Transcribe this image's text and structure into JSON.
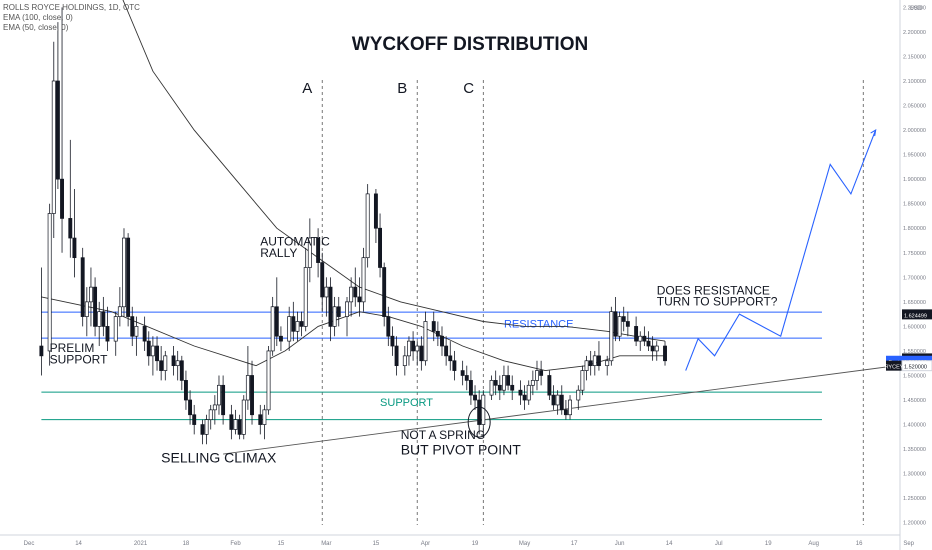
{
  "header": {
    "symbol_line": "ROLLS ROYCE HOLDINGS, 1D, OTC",
    "ema1": "EMA (100, close, 0)",
    "ema2": "EMA (50, close, 0)"
  },
  "chart_data": {
    "type": "candlestick",
    "title": "WYCKOFF DISTRIBUTION",
    "currency": "USD",
    "ylim": [
      1.175,
      2.265
    ],
    "y_ticks": [
      2.25,
      2.2,
      2.15,
      2.1,
      2.05,
      2.0,
      1.95,
      1.9,
      1.85,
      1.8,
      1.75,
      1.7,
      1.65,
      1.6,
      1.55,
      1.5,
      1.45,
      1.4,
      1.35,
      1.3,
      1.25,
      1.2
    ],
    "y_tick_labels": [
      "2.250000",
      "2.200000",
      "2.150000",
      "2.100000",
      "2.050000",
      "2.000000",
      "1.950000",
      "1.900000",
      "1.850000",
      "1.800000",
      "1.750000",
      "1.700000",
      "1.650000",
      "1.600000",
      "1.550000",
      "1.500000",
      "1.450000",
      "1.400000",
      "1.350000",
      "1.300000",
      "1.250000",
      "1.200000"
    ],
    "x_ticks": [
      "Dec",
      "14",
      "2021",
      "18",
      "Feb",
      "15",
      "Mar",
      "15",
      "Apr",
      "19",
      "May",
      "17",
      "Jun",
      "14",
      "Jul",
      "19",
      "Aug",
      "16",
      "Sep"
    ],
    "x_tick_values": [
      0,
      12,
      27,
      38,
      50,
      61,
      72,
      84,
      96,
      108,
      120,
      132,
      143,
      155,
      167,
      179,
      190,
      201,
      213
    ],
    "price_labels": [
      {
        "label": "",
        "value": "1.624499",
        "price": 1.6245,
        "color": "#131722"
      },
      {
        "label": "",
        "value": "1.534788",
        "price": 1.5348,
        "color": "#131722"
      },
      {
        "label": "Post",
        "value": "1.530000",
        "price": 1.53,
        "color": "#2962ff"
      },
      {
        "label": "RYCEY",
        "value": "1.520000",
        "price": 1.52,
        "color": "#ffffff"
      }
    ],
    "candles": [
      [
        3,
        1.56,
        1.72,
        1.5,
        1.54
      ],
      [
        5,
        1.55,
        1.85,
        1.52,
        1.83
      ],
      [
        6,
        1.83,
        2.18,
        1.78,
        2.1
      ],
      [
        7,
        2.1,
        2.22,
        1.88,
        1.9
      ],
      [
        8,
        1.9,
        2.25,
        1.75,
        1.82
      ],
      [
        10,
        1.82,
        1.98,
        1.74,
        1.78
      ],
      [
        11,
        1.78,
        1.88,
        1.7,
        1.74
      ],
      [
        13,
        1.74,
        1.76,
        1.6,
        1.62
      ],
      [
        14,
        1.62,
        1.68,
        1.58,
        1.65
      ],
      [
        15,
        1.65,
        1.72,
        1.6,
        1.68
      ],
      [
        16,
        1.68,
        1.7,
        1.58,
        1.6
      ],
      [
        17,
        1.6,
        1.65,
        1.56,
        1.63
      ],
      [
        18,
        1.63,
        1.66,
        1.58,
        1.6
      ],
      [
        19,
        1.6,
        1.64,
        1.55,
        1.57
      ],
      [
        21,
        1.57,
        1.63,
        1.54,
        1.62
      ],
      [
        22,
        1.62,
        1.68,
        1.6,
        1.64
      ],
      [
        23,
        1.64,
        1.8,
        1.62,
        1.78
      ],
      [
        24,
        1.78,
        1.79,
        1.6,
        1.62
      ],
      [
        25,
        1.62,
        1.64,
        1.56,
        1.58
      ],
      [
        26,
        1.58,
        1.62,
        1.54,
        1.6
      ],
      [
        28,
        1.6,
        1.62,
        1.55,
        1.57
      ],
      [
        29,
        1.57,
        1.59,
        1.52,
        1.54
      ],
      [
        30,
        1.54,
        1.58,
        1.5,
        1.56
      ],
      [
        31,
        1.56,
        1.58,
        1.51,
        1.53
      ],
      [
        32,
        1.53,
        1.56,
        1.49,
        1.51
      ],
      [
        33,
        1.51,
        1.55,
        1.49,
        1.54
      ],
      [
        35,
        1.54,
        1.56,
        1.5,
        1.52
      ],
      [
        36,
        1.52,
        1.55,
        1.49,
        1.53
      ],
      [
        37,
        1.53,
        1.54,
        1.47,
        1.49
      ],
      [
        38,
        1.49,
        1.51,
        1.43,
        1.45
      ],
      [
        39,
        1.45,
        1.47,
        1.4,
        1.42
      ],
      [
        40,
        1.42,
        1.44,
        1.38,
        1.4
      ],
      [
        42,
        1.4,
        1.41,
        1.36,
        1.38
      ],
      [
        43,
        1.38,
        1.42,
        1.36,
        1.41
      ],
      [
        44,
        1.41,
        1.44,
        1.39,
        1.43
      ],
      [
        45,
        1.43,
        1.46,
        1.4,
        1.44
      ],
      [
        46,
        1.44,
        1.5,
        1.42,
        1.48
      ],
      [
        47,
        1.48,
        1.5,
        1.4,
        1.42
      ],
      [
        49,
        1.42,
        1.44,
        1.37,
        1.39
      ],
      [
        50,
        1.39,
        1.43,
        1.38,
        1.41
      ],
      [
        51,
        1.41,
        1.42,
        1.37,
        1.38
      ],
      [
        52,
        1.38,
        1.46,
        1.37,
        1.45
      ],
      [
        53,
        1.45,
        1.56,
        1.43,
        1.5
      ],
      [
        54,
        1.5,
        1.53,
        1.4,
        1.42
      ],
      [
        56,
        1.42,
        1.44,
        1.38,
        1.4
      ],
      [
        57,
        1.4,
        1.44,
        1.37,
        1.43
      ],
      [
        58,
        1.43,
        1.56,
        1.42,
        1.55
      ],
      [
        59,
        1.55,
        1.66,
        1.54,
        1.64
      ],
      [
        60,
        1.64,
        1.7,
        1.56,
        1.58
      ],
      [
        61,
        1.58,
        1.6,
        1.55,
        1.57
      ],
      [
        63,
        1.57,
        1.64,
        1.55,
        1.62
      ],
      [
        64,
        1.62,
        1.65,
        1.57,
        1.59
      ],
      [
        65,
        1.59,
        1.63,
        1.57,
        1.61
      ],
      [
        66,
        1.61,
        1.63,
        1.58,
        1.6
      ],
      [
        67,
        1.6,
        1.76,
        1.59,
        1.72
      ],
      [
        68,
        1.72,
        1.82,
        1.69,
        1.78
      ],
      [
        70,
        1.78,
        1.8,
        1.7,
        1.73
      ],
      [
        71,
        1.73,
        1.75,
        1.63,
        1.66
      ],
      [
        72,
        1.66,
        1.7,
        1.62,
        1.68
      ],
      [
        73,
        1.68,
        1.7,
        1.57,
        1.6
      ],
      [
        74,
        1.6,
        1.66,
        1.58,
        1.64
      ],
      [
        75,
        1.64,
        1.66,
        1.6,
        1.62
      ],
      [
        77,
        1.62,
        1.66,
        1.58,
        1.65
      ],
      [
        78,
        1.65,
        1.7,
        1.62,
        1.68
      ],
      [
        79,
        1.68,
        1.72,
        1.64,
        1.66
      ],
      [
        80,
        1.66,
        1.7,
        1.62,
        1.65
      ],
      [
        81,
        1.65,
        1.76,
        1.63,
        1.74
      ],
      [
        82,
        1.74,
        1.89,
        1.72,
        1.87
      ],
      [
        84,
        1.87,
        1.88,
        1.77,
        1.8
      ],
      [
        85,
        1.8,
        1.83,
        1.7,
        1.72
      ],
      [
        86,
        1.72,
        1.73,
        1.6,
        1.62
      ],
      [
        87,
        1.62,
        1.64,
        1.56,
        1.58
      ],
      [
        88,
        1.58,
        1.6,
        1.54,
        1.56
      ],
      [
        89,
        1.56,
        1.58,
        1.5,
        1.52
      ],
      [
        91,
        1.52,
        1.56,
        1.5,
        1.54
      ],
      [
        92,
        1.54,
        1.58,
        1.52,
        1.57
      ],
      [
        93,
        1.57,
        1.59,
        1.53,
        1.55
      ],
      [
        94,
        1.55,
        1.57,
        1.52,
        1.56
      ],
      [
        95,
        1.56,
        1.58,
        1.51,
        1.53
      ],
      [
        96,
        1.53,
        1.63,
        1.52,
        1.61
      ],
      [
        98,
        1.61,
        1.63,
        1.57,
        1.59
      ],
      [
        99,
        1.59,
        1.61,
        1.56,
        1.58
      ],
      [
        100,
        1.58,
        1.6,
        1.54,
        1.56
      ],
      [
        101,
        1.56,
        1.58,
        1.52,
        1.54
      ],
      [
        102,
        1.54,
        1.57,
        1.51,
        1.53
      ],
      [
        103,
        1.53,
        1.55,
        1.49,
        1.51
      ],
      [
        105,
        1.51,
        1.53,
        1.48,
        1.5
      ],
      [
        106,
        1.5,
        1.52,
        1.47,
        1.49
      ],
      [
        107,
        1.49,
        1.51,
        1.44,
        1.46
      ],
      [
        108,
        1.46,
        1.48,
        1.43,
        1.45
      ],
      [
        109,
        1.45,
        1.47,
        1.38,
        1.4
      ],
      [
        110,
        1.4,
        1.47,
        1.38,
        1.46
      ],
      [
        112,
        1.46,
        1.5,
        1.45,
        1.49
      ],
      [
        113,
        1.49,
        1.51,
        1.46,
        1.48
      ],
      [
        114,
        1.48,
        1.5,
        1.45,
        1.47
      ],
      [
        115,
        1.47,
        1.52,
        1.46,
        1.5
      ],
      [
        116,
        1.5,
        1.52,
        1.47,
        1.48
      ],
      [
        117,
        1.48,
        1.5,
        1.45,
        1.47
      ],
      [
        119,
        1.47,
        1.49,
        1.44,
        1.46
      ],
      [
        120,
        1.46,
        1.48,
        1.43,
        1.45
      ],
      [
        121,
        1.45,
        1.49,
        1.44,
        1.48
      ],
      [
        122,
        1.48,
        1.51,
        1.46,
        1.49
      ],
      [
        123,
        1.49,
        1.53,
        1.47,
        1.51
      ],
      [
        124,
        1.51,
        1.53,
        1.48,
        1.5
      ],
      [
        126,
        1.5,
        1.51,
        1.45,
        1.46
      ],
      [
        127,
        1.46,
        1.48,
        1.43,
        1.44
      ],
      [
        128,
        1.44,
        1.47,
        1.42,
        1.46
      ],
      [
        129,
        1.46,
        1.48,
        1.42,
        1.43
      ],
      [
        130,
        1.43,
        1.45,
        1.41,
        1.42
      ],
      [
        131,
        1.42,
        1.46,
        1.41,
        1.45
      ],
      [
        133,
        1.45,
        1.48,
        1.43,
        1.47
      ],
      [
        134,
        1.47,
        1.52,
        1.46,
        1.51
      ],
      [
        135,
        1.51,
        1.54,
        1.49,
        1.53
      ],
      [
        136,
        1.53,
        1.55,
        1.5,
        1.52
      ],
      [
        137,
        1.52,
        1.55,
        1.5,
        1.54
      ],
      [
        138,
        1.54,
        1.57,
        1.51,
        1.52
      ],
      [
        140,
        1.52,
        1.54,
        1.5,
        1.53
      ],
      [
        141,
        1.53,
        1.64,
        1.52,
        1.63
      ],
      [
        142,
        1.63,
        1.66,
        1.57,
        1.58
      ],
      [
        143,
        1.58,
        1.63,
        1.57,
        1.62
      ],
      [
        144,
        1.62,
        1.64,
        1.59,
        1.61
      ],
      [
        145,
        1.61,
        1.63,
        1.58,
        1.6
      ],
      [
        147,
        1.6,
        1.62,
        1.56,
        1.57
      ],
      [
        148,
        1.57,
        1.59,
        1.55,
        1.58
      ],
      [
        149,
        1.58,
        1.6,
        1.56,
        1.57
      ],
      [
        150,
        1.57,
        1.59,
        1.55,
        1.56
      ],
      [
        151,
        1.56,
        1.58,
        1.53,
        1.55
      ],
      [
        152,
        1.55,
        1.57,
        1.53,
        1.56
      ],
      [
        154,
        1.56,
        1.57,
        1.52,
        1.53
      ]
    ],
    "ema_fast": [
      [
        3,
        1.66
      ],
      [
        20,
        1.63
      ],
      [
        40,
        1.56
      ],
      [
        55,
        1.52
      ],
      [
        62,
        1.55
      ],
      [
        70,
        1.6
      ],
      [
        80,
        1.63
      ],
      [
        87,
        1.62
      ],
      [
        95,
        1.6
      ],
      [
        105,
        1.56
      ],
      [
        115,
        1.53
      ],
      [
        125,
        1.51
      ],
      [
        135,
        1.52
      ],
      [
        143,
        1.54
      ],
      [
        150,
        1.54
      ],
      [
        154,
        1.54
      ]
    ],
    "ema_slow": [
      [
        22,
        2.28
      ],
      [
        30,
        2.12
      ],
      [
        40,
        2.0
      ],
      [
        50,
        1.9
      ],
      [
        60,
        1.8
      ],
      [
        70,
        1.74
      ],
      [
        80,
        1.68
      ],
      [
        90,
        1.65
      ],
      [
        100,
        1.63
      ],
      [
        110,
        1.61
      ],
      [
        120,
        1.6
      ],
      [
        130,
        1.6
      ],
      [
        140,
        1.59
      ],
      [
        150,
        1.575
      ],
      [
        154,
        1.57
      ]
    ],
    "drawings": {
      "resistance_line": {
        "label": "RESISTANCE",
        "y1": 1.629,
        "y2": 1.576,
        "x_range": [
          3,
          192
        ],
        "color": "#2962ff"
      },
      "support_line": {
        "label": "SUPPORT",
        "y1": 1.466,
        "y2": 1.41,
        "x_range": [
          3,
          192
        ],
        "color": "#089981"
      },
      "trend_line": {
        "points": [
          [
            47,
            1.34
          ],
          [
            210,
            1.52
          ]
        ],
        "color": "#555555"
      },
      "projection": {
        "points": [
          [
            159,
            1.51
          ],
          [
            162,
            1.575
          ],
          [
            166,
            1.54
          ],
          [
            172,
            1.625
          ],
          [
            182,
            1.58
          ],
          [
            194,
            1.93
          ],
          [
            199,
            1.87
          ],
          [
            205,
            2.0
          ]
        ],
        "color": "#2962ff"
      },
      "phase_lines": {
        "labels": [
          "A",
          "B",
          "C"
        ],
        "x": [
          71,
          94,
          110
        ],
        "extra_x": 202
      }
    },
    "annotations": [
      {
        "text": "PRELIM",
        "x": 5,
        "y": 1.548,
        "color": "#131722"
      },
      {
        "text": "SUPPORT",
        "x": 5,
        "y": 1.524,
        "color": "#131722"
      },
      {
        "text": "SELLING CLIMAX",
        "x": 32,
        "y": 1.323,
        "color": "#131722"
      },
      {
        "text": "AUTOMATIC",
        "x": 56,
        "y": 1.765,
        "color": "#131722"
      },
      {
        "text": "RALLY",
        "x": 56,
        "y": 1.741,
        "color": "#131722"
      },
      {
        "text": "NOT A SPRING",
        "x": 90,
        "y": 1.371,
        "color": "#131722"
      },
      {
        "text": "BUT PIVOT POINT",
        "x": 90,
        "y": 1.339,
        "color": "#131722"
      },
      {
        "text": "DOES RESISTANCE",
        "x": 152,
        "y": 1.665,
        "color": "#131722"
      },
      {
        "text": "TURN TO SUPPORT?",
        "x": 152,
        "y": 1.643,
        "color": "#131722"
      }
    ]
  }
}
